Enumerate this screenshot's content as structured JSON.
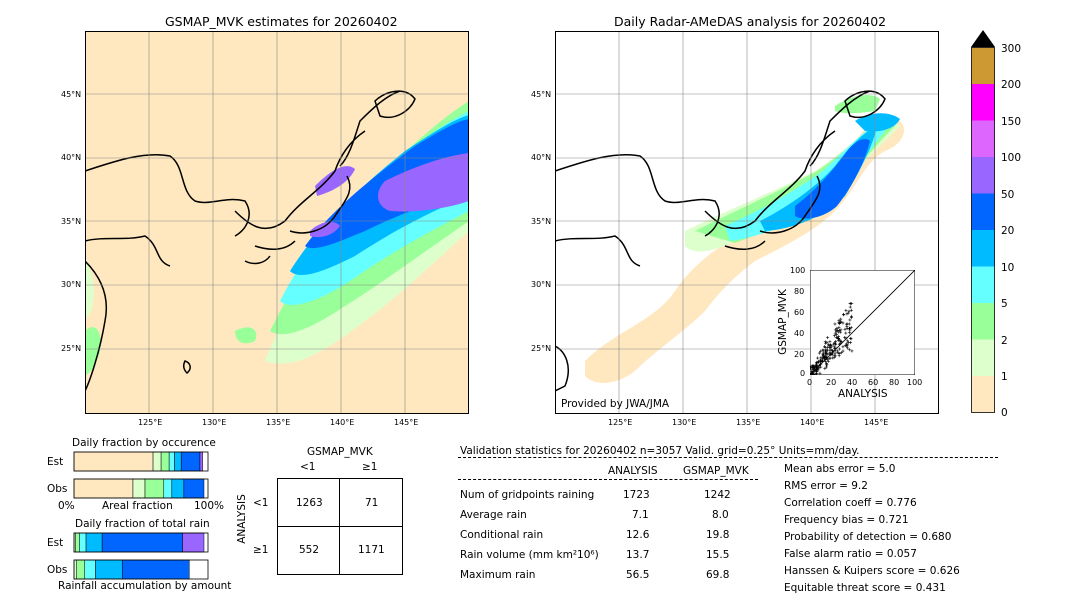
{
  "map_left": {
    "title": "GSMAP_MVK estimates for 20260402",
    "lon_ticks": [
      "125°E",
      "130°E",
      "135°E",
      "140°E",
      "145°E"
    ],
    "lat_ticks": [
      "45°N",
      "40°N",
      "35°N",
      "30°N",
      "25°N"
    ]
  },
  "map_right": {
    "title": "Daily Radar-AMeDAS analysis for 20260402",
    "lon_ticks": [
      "125°E",
      "130°E",
      "135°E",
      "140°E",
      "145°E"
    ],
    "lat_ticks": [
      "45°N",
      "40°N",
      "35°N",
      "30°N",
      "25°N"
    ],
    "credit": "Provided by JWA/JMA",
    "scatter": {
      "xlabel": "ANALYSIS",
      "ylabel": "GSMAP_MVK",
      "ticks": [
        "0",
        "20",
        "40",
        "60",
        "80",
        "100"
      ]
    }
  },
  "colorbar": {
    "labels": [
      "300",
      "200",
      "150",
      "100",
      "50",
      "20",
      "10",
      "5",
      "2",
      "1",
      "0"
    ],
    "colors": [
      "#cc9933",
      "#ff00ff",
      "#dd66ff",
      "#9966ff",
      "#0066ff",
      "#00bbff",
      "#66ffff",
      "#99ff99",
      "#ddffcc",
      "#ffe8bf"
    ]
  },
  "occurrence": {
    "title": "Daily fraction by occurence",
    "rows": [
      "Est",
      "Obs"
    ],
    "axis_left": "0%",
    "axis_mid": "Areal fraction",
    "axis_right": "100%"
  },
  "total_rain": {
    "title": "Daily fraction of total rain",
    "rows": [
      "Est",
      "Obs"
    ],
    "footer": "Rainfall accumulation by amount"
  },
  "contingency": {
    "title": "GSMAP_MVK",
    "col_labels": [
      "<1",
      "≥1"
    ],
    "row_labels": [
      "<1",
      "≥1"
    ],
    "row_axis": "ANALYSIS",
    "cells": [
      "1263",
      "71",
      "552",
      "1171"
    ]
  },
  "validation": {
    "header": "Validation statistics for 20260402  n=3057 Valid. grid=0.25° Units=mm/day.",
    "col_analysis": "ANALYSIS",
    "col_gsmap": "GSMAP_MVK",
    "rows": [
      {
        "label": "Num of gridpoints raining",
        "analysis": "1723",
        "gsmap": "1242"
      },
      {
        "label": "Average rain",
        "analysis": "7.1",
        "gsmap": "8.0"
      },
      {
        "label": "Conditional rain",
        "analysis": "12.6",
        "gsmap": "19.8"
      },
      {
        "label": "Rain volume (mm km²10⁶)",
        "analysis": "13.7",
        "gsmap": "15.5"
      },
      {
        "label": "Maximum rain",
        "analysis": "56.5",
        "gsmap": "69.8"
      }
    ],
    "scores": [
      "Mean abs error =    5.0",
      "RMS error =    9.2",
      "Correlation coeff =  0.776",
      "Frequency bias =  0.721",
      "Probability of detection =  0.680",
      "False alarm ratio =  0.057",
      "Hanssen & Kuipers score =  0.626",
      "Equitable threat score =  0.431"
    ]
  },
  "chart_data": [
    {
      "type": "bar",
      "title": "Daily fraction by occurence",
      "categories": [
        "Est",
        "Obs"
      ],
      "series": [
        {
          "color": "#ffe8bf",
          "values": [
            0.59,
            0.44
          ]
        },
        {
          "color": "#ddffcc",
          "values": [
            0.06,
            0.09
          ]
        },
        {
          "color": "#99ff99",
          "values": [
            0.06,
            0.14
          ]
        },
        {
          "color": "#66ffff",
          "values": [
            0.04,
            0.06
          ]
        },
        {
          "color": "#00bbff",
          "values": [
            0.05,
            0.09
          ]
        },
        {
          "color": "#0066ff",
          "values": [
            0.14,
            0.15
          ]
        },
        {
          "color": "#9966ff",
          "values": [
            0.02,
            0.0
          ]
        }
      ],
      "xlim": [
        0,
        1
      ]
    },
    {
      "type": "bar",
      "title": "Daily fraction of total rain",
      "categories": [
        "Est",
        "Obs"
      ],
      "series": [
        {
          "color": "#ffe8bf",
          "values": [
            0.0,
            0.0
          ]
        },
        {
          "color": "#ddffcc",
          "values": [
            0.01,
            0.02
          ]
        },
        {
          "color": "#99ff99",
          "values": [
            0.03,
            0.06
          ]
        },
        {
          "color": "#66ffff",
          "values": [
            0.05,
            0.08
          ]
        },
        {
          "color": "#00bbff",
          "values": [
            0.12,
            0.2
          ]
        },
        {
          "color": "#0066ff",
          "values": [
            0.6,
            0.5
          ]
        },
        {
          "color": "#9966ff",
          "values": [
            0.16,
            0.0
          ]
        }
      ],
      "xlim": [
        0,
        1
      ]
    },
    {
      "type": "scatter",
      "xlabel": "ANALYSIS",
      "ylabel": "GSMAP_MVK",
      "xlim": [
        0,
        100
      ],
      "ylim": [
        0,
        100
      ]
    }
  ]
}
